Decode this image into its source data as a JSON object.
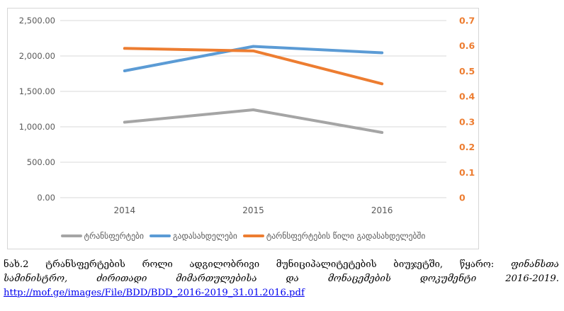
{
  "chart_data": {
    "type": "line",
    "categories": [
      "2014",
      "2015",
      "2016"
    ],
    "series": [
      {
        "name": "ტრანსფერტები",
        "axis": "left",
        "color": "#A5A5A5",
        "values": [
          1065,
          1240,
          920
        ]
      },
      {
        "name": "გადასახდელები",
        "axis": "left",
        "color": "#5B9BD5",
        "values": [
          1790,
          2135,
          2045
        ]
      },
      {
        "name": "ტარნსფერტების წილი გადასახდელებში",
        "axis": "right",
        "color": "#ED7D31",
        "values": [
          0.59,
          0.58,
          0.45
        ]
      }
    ],
    "left_axis": {
      "min": 0,
      "max": 2500,
      "tick_values": [
        0,
        500,
        1000,
        1500,
        2000,
        2500
      ],
      "tick_labels": [
        "0.00",
        "500.00",
        "1,000.00",
        "1,500.00",
        "2,000.00",
        "2,500.00"
      ],
      "color": "#595959"
    },
    "right_axis": {
      "min": 0,
      "max": 0.7,
      "tick_values": [
        0,
        0.1,
        0.2,
        0.3,
        0.4,
        0.5,
        0.6,
        0.7
      ],
      "tick_labels": [
        "0",
        "0.1",
        "0.2",
        "0.3",
        "0.4",
        "0.5",
        "0.6",
        "0.7"
      ],
      "color": "#ED7D31"
    },
    "grid": true,
    "gridline_color": "#D9D9D9",
    "category_label_color": "#595959",
    "legend_position": "bottom",
    "title": ""
  },
  "caption": {
    "line1_regular": "ნახ.2 ტრანსფერტების როლი ადგილობრივი მუნიციპალიტეტების ბიუჯეტში, წყარო:",
    "line1_italic": "ფინანსთა",
    "line2_italic": "სამინისტრო, ძირითადი მიმართულებისა და მონაცემების დოკუმენტი 2016-2019.",
    "link_text": "http://mof.ge/images/File/BDD/BDD_2016-2019_31.01.2016.pdf",
    "link_color": "#0000EE"
  }
}
